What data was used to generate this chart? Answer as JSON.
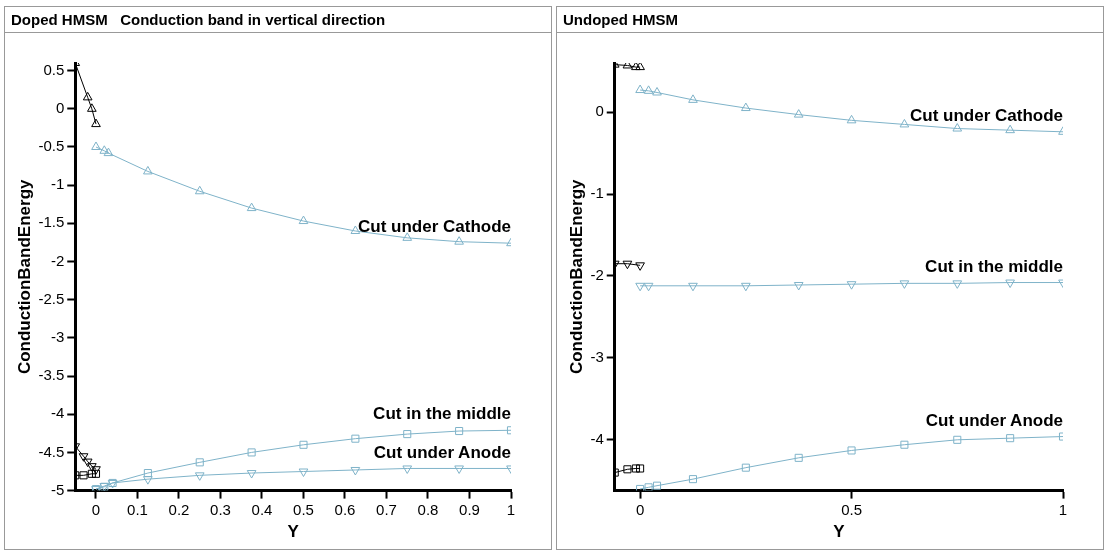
{
  "chart_data": [
    {
      "type": "line",
      "title": "Doped HMSM   Conduction band in vertical direction",
      "xlabel": "Y",
      "ylabel": "ConductionBandEnergy",
      "xlim": [
        -0.05,
        1
      ],
      "xticks": [
        0,
        0.1,
        0.2,
        0.3,
        0.4,
        0.5,
        0.6,
        0.7,
        0.8,
        0.9,
        1
      ],
      "ylim": [
        -5,
        0.6
      ],
      "yticks": [
        -5,
        -4.5,
        -4,
        -3.5,
        -3,
        -2.5,
        -2,
        -1.5,
        -1,
        -0.5,
        0,
        0.5
      ],
      "grid": false,
      "legend": false,
      "line_style": "solid",
      "series": [
        {
          "color": "#000000",
          "marker": "triangle",
          "x": [
            -0.05,
            -0.02,
            -0.01,
            0
          ],
          "values": [
            0.6,
            0.15,
            0.0,
            -0.2
          ]
        },
        {
          "name": "Cut under Cathode",
          "color": "#7fb3c9",
          "marker": "triangle",
          "x": [
            0,
            0.02,
            0.03,
            0.125,
            0.25,
            0.375,
            0.5,
            0.625,
            0.75,
            0.875,
            1
          ],
          "values": [
            -0.5,
            -0.55,
            -0.58,
            -0.82,
            -1.08,
            -1.3,
            -1.47,
            -1.6,
            -1.69,
            -1.74,
            -1.76
          ]
        },
        {
          "color": "#000000",
          "marker": "square",
          "x": [
            -0.05,
            -0.03,
            -0.01,
            0
          ],
          "values": [
            -4.8,
            -4.8,
            -4.78,
            -4.78
          ]
        },
        {
          "name": "Cut in the middle",
          "color": "#7fb3c9",
          "marker": "square",
          "x": [
            0,
            0.02,
            0.04,
            0.125,
            0.25,
            0.375,
            0.5,
            0.625,
            0.75,
            0.875,
            1
          ],
          "values": [
            -4.98,
            -4.95,
            -4.9,
            -4.77,
            -4.63,
            -4.5,
            -4.4,
            -4.32,
            -4.26,
            -4.22,
            -4.21
          ]
        },
        {
          "color": "#000000",
          "marker": "triangle-down",
          "x": [
            -0.05,
            -0.03,
            -0.02,
            -0.01,
            0
          ],
          "values": [
            -4.42,
            -4.55,
            -4.62,
            -4.68,
            -4.72
          ]
        },
        {
          "name": "Cut under Anode",
          "color": "#7fb3c9",
          "marker": "triangle-down",
          "x": [
            0,
            0.02,
            0.04,
            0.125,
            0.25,
            0.375,
            0.5,
            0.625,
            0.75,
            0.875,
            1
          ],
          "values": [
            -4.98,
            -4.94,
            -4.9,
            -4.85,
            -4.8,
            -4.77,
            -4.75,
            -4.73,
            -4.71,
            -4.71,
            -4.71
          ]
        }
      ]
    },
    {
      "type": "line",
      "title": "Undoped HMSM",
      "xlabel": "Y",
      "ylabel": "ConductionBandEnergy",
      "xlim": [
        -0.06,
        1
      ],
      "xticks": [
        0,
        0.5,
        1
      ],
      "ylim": [
        -4.62,
        0.6
      ],
      "yticks": [
        -4,
        -3,
        -2,
        -1,
        0
      ],
      "grid": false,
      "legend": false,
      "line_style": "solid",
      "series": [
        {
          "color": "#000000",
          "marker": "triangle",
          "x": [
            -0.06,
            -0.03,
            -0.01,
            0
          ],
          "values": [
            0.58,
            0.57,
            0.55,
            0.55
          ]
        },
        {
          "name": "Cut under Cathode",
          "color": "#7fb3c9",
          "marker": "triangle",
          "x": [
            0,
            0.02,
            0.04,
            0.125,
            0.25,
            0.375,
            0.5,
            0.625,
            0.75,
            0.875,
            1
          ],
          "values": [
            0.27,
            0.26,
            0.24,
            0.15,
            0.05,
            -0.03,
            -0.1,
            -0.15,
            -0.2,
            -0.22,
            -0.24
          ]
        },
        {
          "color": "#000000",
          "marker": "triangle-down",
          "x": [
            -0.06,
            -0.03,
            0
          ],
          "values": [
            -1.85,
            -1.85,
            -1.87
          ]
        },
        {
          "name": "Cut in the middle",
          "color": "#7fb3c9",
          "marker": "triangle-down",
          "x": [
            0,
            0.02,
            0.125,
            0.25,
            0.375,
            0.5,
            0.625,
            0.75,
            0.875,
            1
          ],
          "values": [
            -2.12,
            -2.12,
            -2.12,
            -2.12,
            -2.11,
            -2.1,
            -2.09,
            -2.09,
            -2.08,
            -2.08
          ]
        },
        {
          "color": "#000000",
          "marker": "square",
          "x": [
            -0.06,
            -0.03,
            -0.01,
            0
          ],
          "values": [
            -4.4,
            -4.36,
            -4.35,
            -4.35
          ]
        },
        {
          "name": "Cut under Anode",
          "color": "#7fb3c9",
          "marker": "square",
          "x": [
            0,
            0.02,
            0.04,
            0.125,
            0.25,
            0.375,
            0.5,
            0.625,
            0.75,
            0.875,
            1
          ],
          "values": [
            -4.6,
            -4.58,
            -4.56,
            -4.48,
            -4.34,
            -4.22,
            -4.13,
            -4.06,
            -4.0,
            -3.98,
            -3.96
          ]
        }
      ]
    }
  ]
}
